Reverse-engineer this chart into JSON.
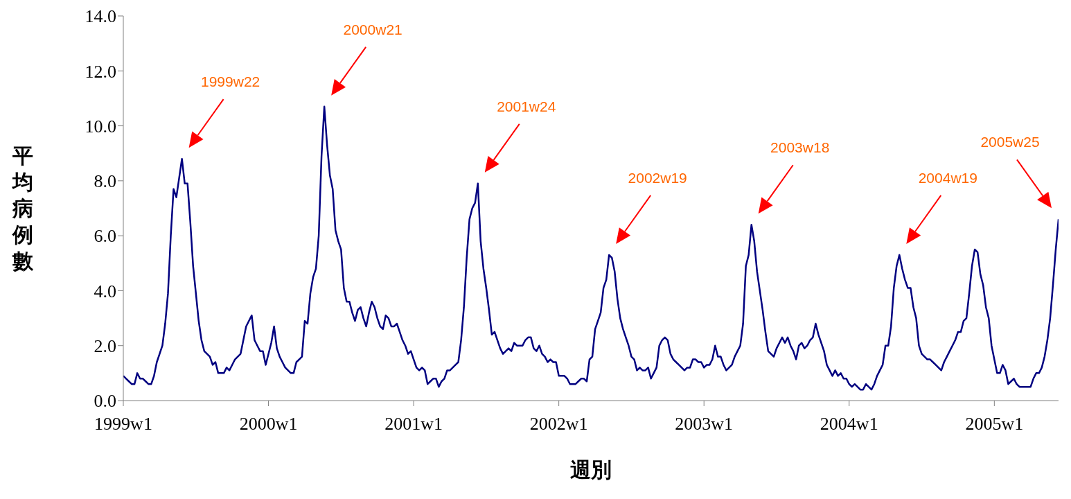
{
  "chart_data": {
    "type": "line",
    "xlabel": "週別",
    "ylabel": "平均病例數",
    "categories": [
      "1999w1",
      null,
      null,
      null,
      null,
      null,
      null,
      null,
      null,
      null,
      null,
      null,
      null,
      null,
      null,
      null,
      null,
      null,
      null,
      null,
      null,
      null,
      null,
      null,
      null,
      null,
      null,
      null,
      null,
      null,
      null,
      null,
      null,
      null,
      null,
      null,
      null,
      null,
      null,
      null,
      null,
      null,
      null,
      null,
      null,
      null,
      null,
      null,
      null,
      null,
      null,
      null,
      "2000w1",
      null,
      null,
      null,
      null,
      null,
      null,
      null,
      null,
      null,
      null,
      null,
      null,
      null,
      null,
      null,
      null,
      null,
      null,
      null,
      null,
      null,
      null,
      null,
      null,
      null,
      null,
      null,
      null,
      null,
      null,
      null,
      null,
      null,
      null,
      null,
      null,
      null,
      null,
      null,
      null,
      null,
      null,
      null,
      null,
      null,
      null,
      null,
      null,
      null,
      null,
      null,
      "2001w1",
      null,
      null,
      null,
      null,
      null,
      null,
      null,
      null,
      null,
      null,
      null,
      null,
      null,
      null,
      null,
      null,
      null,
      null,
      null,
      null,
      null,
      null,
      null,
      null,
      null,
      null,
      null,
      null,
      null,
      null,
      null,
      null,
      null,
      null,
      null,
      null,
      null,
      null,
      null,
      null,
      null,
      null,
      null,
      null,
      null,
      null,
      null,
      null,
      null,
      null,
      null,
      "2002w1",
      null,
      null,
      null,
      null,
      null,
      null,
      null,
      null,
      null,
      null,
      null,
      null,
      null,
      null,
      null,
      null,
      null,
      null,
      null,
      null,
      null,
      null,
      null,
      null,
      null,
      null,
      null,
      null,
      null,
      null,
      null,
      null,
      null,
      null,
      null,
      null,
      null,
      null,
      null,
      null,
      null,
      null,
      null,
      null,
      null,
      null,
      null,
      null,
      null,
      null,
      null,
      "2003w1",
      null,
      null,
      null,
      null,
      null,
      null,
      null,
      null,
      null,
      null,
      null,
      null,
      null,
      null,
      null,
      null,
      null,
      null,
      null,
      null,
      null,
      null,
      null,
      null,
      null,
      null,
      null,
      null,
      null,
      null,
      null,
      null,
      null,
      null,
      null,
      null,
      null,
      null,
      null,
      null,
      null,
      null,
      null,
      null,
      null,
      null,
      null,
      null,
      null,
      null,
      null,
      "2004w1",
      null,
      null,
      null,
      null,
      null,
      null,
      null,
      null,
      null,
      null,
      null,
      null,
      null,
      null,
      null,
      null,
      null,
      null,
      null,
      null,
      null,
      null,
      null,
      null,
      null,
      null,
      null,
      null,
      null,
      null,
      null,
      null,
      null,
      null,
      null,
      null,
      null,
      null,
      null,
      null,
      null,
      null,
      null,
      null,
      null,
      null,
      null,
      null,
      null,
      null,
      null,
      "2005w1",
      null,
      null,
      null,
      null,
      null,
      null,
      null,
      null,
      null,
      null,
      null,
      null,
      null,
      null,
      null,
      null,
      null,
      null,
      null,
      null,
      null,
      null,
      null
    ],
    "ylim": [
      0,
      14
    ],
    "yticks": [
      {
        "value": 0,
        "label": "0.0"
      },
      {
        "value": 2,
        "label": "2.0"
      },
      {
        "value": 4,
        "label": "4.0"
      },
      {
        "value": 6,
        "label": "6.0"
      },
      {
        "value": 8,
        "label": "8.0"
      },
      {
        "value": 10,
        "label": "10.0"
      },
      {
        "value": 12,
        "label": "12.0"
      },
      {
        "value": 14,
        "label": "14.0"
      }
    ],
    "series": [
      {
        "color": "#000080",
        "values": [
          0.9,
          0.8,
          0.7,
          0.6,
          0.6,
          1.0,
          0.8,
          0.8,
          0.7,
          0.6,
          0.6,
          0.9,
          1.4,
          1.7,
          2.0,
          2.8,
          3.9,
          6.0,
          7.7,
          7.4,
          8.1,
          8.8,
          7.9,
          7.9,
          6.5,
          4.9,
          3.9,
          2.9,
          2.2,
          1.8,
          1.7,
          1.6,
          1.3,
          1.4,
          1.0,
          1.0,
          1.0,
          1.2,
          1.1,
          1.3,
          1.5,
          1.6,
          1.7,
          2.2,
          2.7,
          2.9,
          3.1,
          2.2,
          2.0,
          1.8,
          1.8,
          1.3,
          1.7,
          2.1,
          2.7,
          1.9,
          1.6,
          1.4,
          1.2,
          1.1,
          1.0,
          1.0,
          1.4,
          1.5,
          1.6,
          2.9,
          2.8,
          3.9,
          4.5,
          4.8,
          6.0,
          8.9,
          10.7,
          9.3,
          8.2,
          7.7,
          6.2,
          5.8,
          5.5,
          4.1,
          3.6,
          3.6,
          3.2,
          2.9,
          3.3,
          3.4,
          3.0,
          2.7,
          3.2,
          3.6,
          3.4,
          3.0,
          2.7,
          2.6,
          3.1,
          3.0,
          2.7,
          2.7,
          2.8,
          2.5,
          2.2,
          2.0,
          1.7,
          1.8,
          1.5,
          1.2,
          1.1,
          1.2,
          1.1,
          0.6,
          0.7,
          0.8,
          0.8,
          0.5,
          0.7,
          0.8,
          1.1,
          1.1,
          1.2,
          1.3,
          1.4,
          2.2,
          3.4,
          5.2,
          6.6,
          7.0,
          7.2,
          7.9,
          5.8,
          4.8,
          4.1,
          3.3,
          2.4,
          2.5,
          2.2,
          1.9,
          1.7,
          1.8,
          1.9,
          1.8,
          2.1,
          2.0,
          2.0,
          2.0,
          2.2,
          2.3,
          2.3,
          1.9,
          1.8,
          2.0,
          1.7,
          1.6,
          1.4,
          1.5,
          1.4,
          1.4,
          0.9,
          0.9,
          0.9,
          0.8,
          0.6,
          0.6,
          0.6,
          0.7,
          0.8,
          0.8,
          0.7,
          1.5,
          1.6,
          2.6,
          2.9,
          3.2,
          4.1,
          4.4,
          5.3,
          5.2,
          4.7,
          3.7,
          3.0,
          2.6,
          2.3,
          2.0,
          1.6,
          1.5,
          1.1,
          1.2,
          1.1,
          1.1,
          1.2,
          0.8,
          1.0,
          1.2,
          2.0,
          2.2,
          2.3,
          2.2,
          1.7,
          1.5,
          1.4,
          1.3,
          1.2,
          1.1,
          1.2,
          1.2,
          1.5,
          1.5,
          1.4,
          1.4,
          1.2,
          1.3,
          1.3,
          1.5,
          2.0,
          1.6,
          1.6,
          1.3,
          1.1,
          1.2,
          1.3,
          1.6,
          1.8,
          2.0,
          2.8,
          4.9,
          5.3,
          6.4,
          5.8,
          4.7,
          4.0,
          3.3,
          2.5,
          1.8,
          1.7,
          1.6,
          1.9,
          2.1,
          2.3,
          2.1,
          2.3,
          2.0,
          1.8,
          1.5,
          2.0,
          2.1,
          1.9,
          2.0,
          2.2,
          2.3,
          2.8,
          2.4,
          2.1,
          1.8,
          1.3,
          1.1,
          0.9,
          1.1,
          0.9,
          1.0,
          0.8,
          0.8,
          0.6,
          0.5,
          0.6,
          0.5,
          0.4,
          0.4,
          0.6,
          0.5,
          0.4,
          0.6,
          0.9,
          1.1,
          1.3,
          2.0,
          2.0,
          2.7,
          4.1,
          4.9,
          5.3,
          4.8,
          4.4,
          4.1,
          4.1,
          3.4,
          3.0,
          2.0,
          1.7,
          1.6,
          1.5,
          1.5,
          1.4,
          1.3,
          1.2,
          1.1,
          1.4,
          1.6,
          1.8,
          2.0,
          2.2,
          2.5,
          2.5,
          2.9,
          3.0,
          3.9,
          4.9,
          5.5,
          5.4,
          4.6,
          4.2,
          3.4,
          3.0,
          2.0,
          1.5,
          1.0,
          1.0,
          1.3,
          1.1,
          0.6,
          0.7,
          0.8,
          0.6,
          0.5,
          0.5,
          0.5,
          0.5,
          0.5,
          0.8,
          1.0,
          1.0,
          1.2,
          1.6,
          2.2,
          3.0,
          4.2,
          5.5,
          6.6
        ]
      }
    ],
    "annotations": [
      "1999w22",
      "2000w21",
      "2001w24",
      "2002w19",
      "2003w18",
      "2004w19",
      "2005w25"
    ]
  }
}
